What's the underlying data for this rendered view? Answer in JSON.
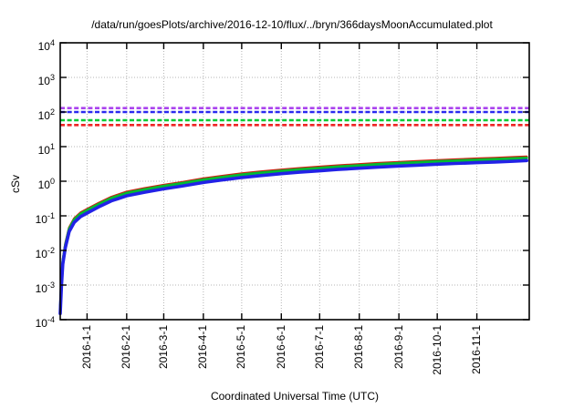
{
  "title": "/data/run/goesPlots/archive/2016-12-10/flux/../bryn/366daysMoonAccumulated.plot",
  "axes": {
    "y_label": "cSv",
    "x_label": "Coordinated Universal Time (UTC)",
    "y_tick_base": "10",
    "y_tick_exponents": [
      4,
      3,
      2,
      1,
      0,
      -1,
      -2,
      -3,
      -4
    ],
    "x_tick_labels": [
      "2016-1-1",
      "2016-2-1",
      "2016-3-1",
      "2016-4-1",
      "2016-5-1",
      "2016-6-1",
      "2016-7-1",
      "2016-8-1",
      "2016-9-1",
      "2016-10-1",
      "2016-11-1"
    ]
  },
  "chart_data": {
    "type": "line",
    "title": "/data/run/goesPlots/archive/2016-12-10/flux/../bryn/366daysMoonAccumulated.plot",
    "xlabel": "Coordinated Universal Time (UTC)",
    "ylabel": "cSv",
    "y_scale": "log10",
    "ylim": [
      0.0001,
      10000
    ],
    "x_domain": [
      "2015-12-11",
      "2016-12-12"
    ],
    "grid": "dotted",
    "legend": "none",
    "x": [
      "2015-12-11",
      "2015-12-12",
      "2015-12-13",
      "2015-12-15",
      "2015-12-18",
      "2015-12-22",
      "2015-12-27",
      "2016-1-1",
      "2016-1-10",
      "2016-1-20",
      "2016-2-1",
      "2016-2-15",
      "2016-3-1",
      "2016-3-15",
      "2016-4-1",
      "2016-4-15",
      "2016-5-1",
      "2016-5-15",
      "2016-6-1",
      "2016-6-15",
      "2016-7-1",
      "2016-7-15",
      "2016-8-1",
      "2016-8-15",
      "2016-9-1",
      "2016-9-15",
      "2016-10-1",
      "2016-10-15",
      "2016-11-1",
      "2016-11-15",
      "2016-12-1",
      "2016-12-10"
    ],
    "series": [
      {
        "name": "red",
        "color": "#cc2211",
        "values": [
          0.0002,
          0.0013,
          0.0052,
          0.0156,
          0.0455,
          0.0845,
          0.124,
          0.156,
          0.234,
          0.351,
          0.494,
          0.624,
          0.78,
          0.936,
          1.2,
          1.4,
          1.66,
          1.89,
          2.15,
          2.37,
          2.6,
          2.83,
          3.09,
          3.32,
          3.58,
          3.77,
          4.03,
          4.23,
          4.49,
          4.68,
          4.94,
          5.1
        ]
      },
      {
        "name": "green",
        "color": "#00bb33",
        "values": [
          0.00018,
          0.0012,
          0.0048,
          0.014,
          0.042,
          0.078,
          0.114,
          0.144,
          0.216,
          0.324,
          0.456,
          0.576,
          0.72,
          0.864,
          1.1,
          1.3,
          1.54,
          1.74,
          1.98,
          2.18,
          2.4,
          2.62,
          2.86,
          3.06,
          3.3,
          3.48,
          3.72,
          3.9,
          4.14,
          4.32,
          4.56,
          4.7
        ]
      },
      {
        "name": "blue",
        "color": "#2222e6",
        "values": [
          0.00015,
          0.001,
          0.004,
          0.012,
          0.035,
          0.065,
          0.095,
          0.12,
          0.18,
          0.27,
          0.38,
          0.48,
          0.6,
          0.72,
          0.92,
          1.08,
          1.28,
          1.45,
          1.65,
          1.82,
          2.0,
          2.18,
          2.38,
          2.55,
          2.75,
          2.9,
          3.1,
          3.25,
          3.45,
          3.6,
          3.8,
          3.95
        ]
      }
    ],
    "limit_lines": [
      {
        "name": "red",
        "color": "#ee2525",
        "value": 42
      },
      {
        "name": "green",
        "color": "#00cc33",
        "value": 58
      },
      {
        "name": "blue",
        "color": "#2a2af0",
        "value": 100
      },
      {
        "name": "purple",
        "color": "#aa44ee",
        "value": 130
      }
    ]
  }
}
